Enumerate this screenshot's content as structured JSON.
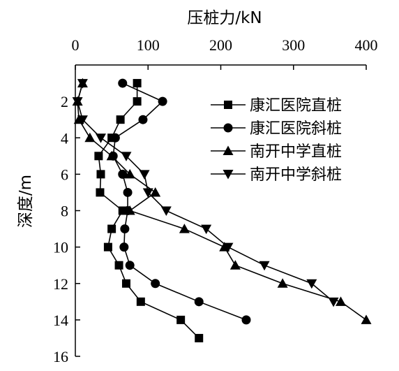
{
  "chart_data": {
    "type": "line",
    "title": "",
    "xlabel": "压桩力/kN",
    "ylabel": "深度/m",
    "x_axis_position": "top",
    "y_axis_inverted": true,
    "xlim": [
      0,
      400
    ],
    "ylim": [
      0,
      16
    ],
    "x_ticks": [
      0,
      100,
      200,
      300,
      400
    ],
    "y_ticks": [
      2,
      4,
      6,
      8,
      10,
      12,
      14,
      16
    ],
    "grid": false,
    "legend_position": "top-right",
    "colors": {
      "line": "#000000",
      "background": "#ffffff"
    },
    "series": [
      {
        "name": "康汇医院直桩",
        "marker": "square",
        "points": [
          [
            85,
            1
          ],
          [
            85,
            2
          ],
          [
            62,
            3
          ],
          [
            50,
            4
          ],
          [
            32,
            5
          ],
          [
            35,
            6
          ],
          [
            34,
            7
          ],
          [
            65,
            8
          ],
          [
            50,
            9
          ],
          [
            45,
            10
          ],
          [
            60,
            11
          ],
          [
            70,
            12
          ],
          [
            90,
            13
          ],
          [
            145,
            14
          ],
          [
            170,
            15
          ]
        ]
      },
      {
        "name": "康汇医院斜桩",
        "marker": "circle",
        "points": [
          [
            65,
            1
          ],
          [
            120,
            2
          ],
          [
            93,
            3
          ],
          [
            55,
            4
          ],
          [
            52,
            5
          ],
          [
            65,
            6
          ],
          [
            72,
            7
          ],
          [
            72,
            8
          ],
          [
            68,
            9
          ],
          [
            67,
            10
          ],
          [
            75,
            11
          ],
          [
            110,
            12
          ],
          [
            170,
            13
          ],
          [
            235,
            14
          ]
        ]
      },
      {
        "name": "南开中学直桩",
        "marker": "triangle-up",
        "points": [
          [
            10,
            1
          ],
          [
            3,
            2
          ],
          [
            5,
            3
          ],
          [
            20,
            4
          ],
          [
            50,
            5
          ],
          [
            75,
            6
          ],
          [
            110,
            7
          ],
          [
            75,
            8
          ],
          [
            150,
            9
          ],
          [
            205,
            10
          ],
          [
            220,
            11
          ],
          [
            285,
            12
          ],
          [
            365,
            13
          ],
          [
            400,
            14
          ]
        ]
      },
      {
        "name": "南开中学斜桩",
        "marker": "triangle-down",
        "points": [
          [
            10,
            1
          ],
          [
            3,
            2
          ],
          [
            10,
            3
          ],
          [
            35,
            4
          ],
          [
            70,
            5
          ],
          [
            95,
            6
          ],
          [
            100,
            7
          ],
          [
            125,
            8
          ],
          [
            180,
            9
          ],
          [
            210,
            10
          ],
          [
            260,
            11
          ],
          [
            325,
            12
          ],
          [
            355,
            13
          ]
        ]
      }
    ]
  }
}
